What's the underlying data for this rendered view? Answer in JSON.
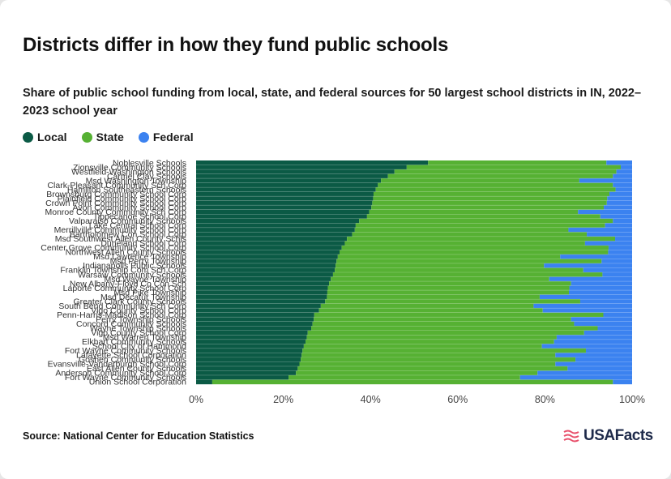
{
  "header": {
    "title": "Districts differ in how they fund public schools",
    "subtitle": "Share of public school funding from local, state, and federal sources for 50 largest school districts in IN, 2022–2023 school year"
  },
  "legend": [
    {
      "label": "Local",
      "color": "#0b5a45"
    },
    {
      "label": "State",
      "color": "#56b133"
    },
    {
      "label": "Federal",
      "color": "#3b82f0"
    }
  ],
  "footer": {
    "source": "Source: National Center for Education Statistics",
    "logo_text": "USAFacts"
  },
  "chart_data": {
    "type": "bar",
    "orientation": "horizontal",
    "stacked": true,
    "xlim": [
      0,
      100
    ],
    "x_ticks": [
      "0%",
      "20%",
      "40%",
      "60%",
      "80%",
      "100%"
    ],
    "legend_placement": "top-left",
    "grid": false,
    "categories": [
      "Noblesville Schools",
      "Zionsville Community Schools",
      "Westfield-Washington Schools",
      "Carmel Clay Schools",
      "Msd Washington Township",
      "Clark-Pleasant Community Sch Corp",
      "Hamilton Southeastern Schools",
      "Brownsburg Community School Corp",
      "Plainfield Community School Corp",
      "Crown Point Community School Corp",
      "Avon Community School Corp",
      "Monroe County Community Sch Corp",
      "Tippecanoe School Corp",
      "Valparaiso Community Schools",
      "Lake Central School Corp",
      "Merrillville Community School Corp",
      "Bartholomew Con School Corp",
      "Msd Southwest Allen County Schls",
      "Duneland School Corp",
      "Center Grove Community School Corp",
      "Northwest Allen County Schools",
      "Msd Lawrence Township",
      "Msd Perry Township",
      "Indianapolis Public Schools",
      "Franklin Township Com Sch Corp",
      "Warsaw Community Schools",
      "Msd Wayne Township",
      "New Albany-Floyd Co Con Sch",
      "Laporte Community School Corp",
      "Msd Pike Township",
      "Msd Decatur Township",
      "Greater Clark County Schools",
      "South Bend Community Sch Corp",
      "Vigo County School Corp",
      "Penn-Harris-Madison School Corp",
      "Perry Township Schools",
      "Concord Community Schools",
      "Wayne Township Schools",
      "Vigo County School Corp",
      "Msd Warren Township",
      "Elkhart Community Schools",
      "School City of Hammond",
      "Fort Wayne Community Schools",
      "Lafayette School Corporation",
      "Goshen Community Schools",
      "Evansville-Vanderburgh School Corp",
      "East Allen County Schools",
      "Anderson Community School Corp",
      "Fort Wayne Community Schools",
      "Union School Corporation"
    ],
    "series": [
      {
        "name": "Local",
        "values": [
          53.2,
          48.3,
          45.5,
          44.0,
          42.4,
          41.7,
          41.2,
          40.7,
          40.6,
          40.4,
          40.2,
          39.7,
          39.2,
          37.4,
          36.6,
          36.4,
          35.8,
          34.6,
          34.1,
          33.4,
          32.9,
          32.5,
          32.2,
          32.0,
          31.8,
          31.4,
          30.9,
          30.5,
          30.2,
          30.1,
          30.0,
          29.6,
          28.6,
          28.2,
          27.1,
          27.0,
          26.7,
          26.4,
          25.6,
          25.4,
          25.1,
          24.7,
          24.4,
          24.2,
          24.0,
          23.7,
          23.3,
          22.9,
          21.2,
          3.7
        ]
      },
      {
        "name": "State",
        "values": [
          40.9,
          49.1,
          50.9,
          51.6,
          45.5,
          53.9,
          55.0,
          54.1,
          53.7,
          53.8,
          53.3,
          47.9,
          53.5,
          58.2,
          57.2,
          49.0,
          53.8,
          61.5,
          55.1,
          61.2,
          61.6,
          51.0,
          60.8,
          47.8,
          57.0,
          61.8,
          50.1,
          55.5,
          55.4,
          55.4,
          48.8,
          58.5,
          48.8,
          51.3,
          66.3,
          59.0,
          60.0,
          65.7,
          63.4,
          57.3,
          57.0,
          54.6,
          65.0,
          58.2,
          63.0,
          58.7,
          61.9,
          55.4,
          53.1,
          91.9
        ]
      },
      {
        "name": "Federal",
        "values": [
          5.9,
          2.6,
          3.6,
          4.4,
          12.1,
          4.4,
          3.8,
          5.2,
          5.7,
          5.8,
          6.5,
          12.4,
          7.3,
          4.4,
          6.2,
          14.6,
          10.4,
          3.9,
          10.8,
          5.4,
          5.5,
          16.5,
          7.0,
          20.2,
          11.2,
          6.8,
          19.0,
          14.0,
          14.4,
          14.5,
          21.2,
          11.9,
          22.6,
          20.5,
          6.6,
          14.0,
          13.3,
          7.9,
          11.0,
          17.3,
          17.9,
          20.7,
          10.6,
          17.6,
          13.0,
          17.6,
          14.8,
          21.7,
          25.7,
          4.4
        ]
      }
    ]
  }
}
